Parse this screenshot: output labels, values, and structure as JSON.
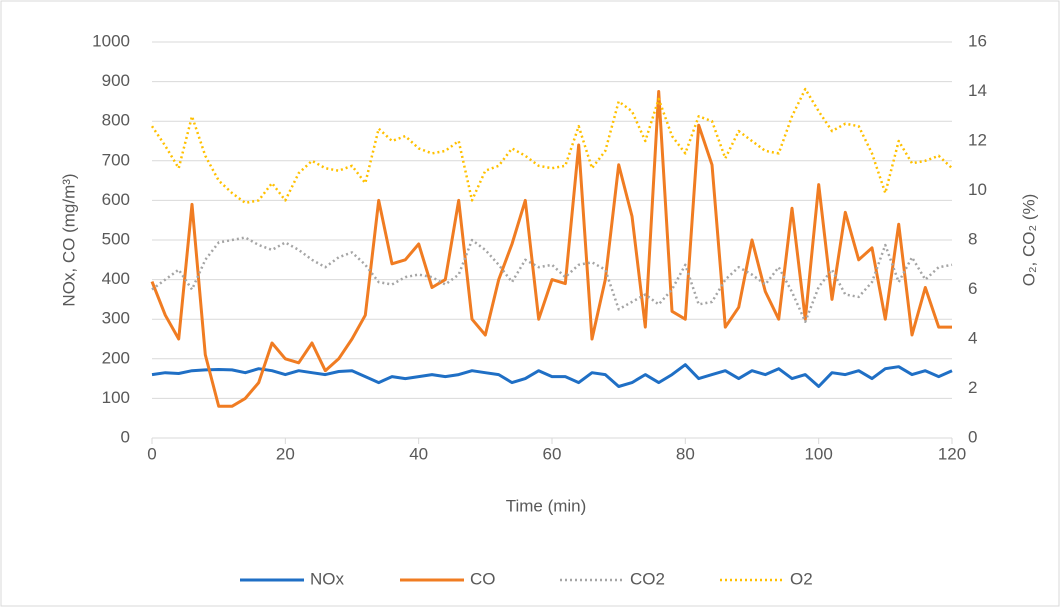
{
  "chart_data": {
    "type": "line",
    "xlabel": "Time (min)",
    "ylabel": "NOx, CO (mg/m³)",
    "y2label": "O₂, CO₂ (%)",
    "xlim": [
      0,
      120
    ],
    "xticks": [
      0,
      20,
      40,
      60,
      80,
      100,
      120
    ],
    "ylim": [
      0,
      1000
    ],
    "yticks": [
      0,
      100,
      200,
      300,
      400,
      500,
      600,
      700,
      800,
      900,
      1000
    ],
    "y2lim": [
      0,
      16
    ],
    "y2ticks": [
      0,
      2,
      4,
      6,
      8,
      10,
      12,
      14,
      16
    ],
    "grid": true,
    "legend": "bottom",
    "x": [
      0,
      2,
      4,
      6,
      8,
      10,
      12,
      14,
      16,
      18,
      20,
      22,
      24,
      26,
      28,
      30,
      32,
      34,
      36,
      38,
      40,
      42,
      44,
      46,
      48,
      50,
      52,
      54,
      56,
      58,
      60,
      62,
      64,
      66,
      68,
      70,
      72,
      74,
      76,
      78,
      80,
      82,
      84,
      86,
      88,
      90,
      92,
      94,
      96,
      98,
      100,
      102,
      104,
      106,
      108,
      110,
      112,
      114,
      116,
      118,
      120
    ],
    "series": [
      {
        "name": "NOx",
        "color": "#1f6fc5",
        "style": "solid",
        "values": [
          160,
          165,
          163,
          170,
          172,
          173,
          172,
          165,
          175,
          170,
          160,
          170,
          165,
          160,
          168,
          170,
          155,
          140,
          155,
          150,
          155,
          160,
          155,
          160,
          170,
          165,
          160,
          140,
          150,
          170,
          155,
          155,
          140,
          165,
          160,
          130,
          140,
          160,
          140,
          160,
          185,
          150,
          160,
          170,
          150,
          170,
          160,
          175,
          150,
          160,
          130,
          165,
          160,
          170,
          150,
          175,
          180,
          160,
          170,
          155,
          170
        ]
      },
      {
        "name": "CO",
        "color": "#f07c22",
        "style": "solid",
        "values": [
          395,
          310,
          250,
          590,
          210,
          80,
          80,
          100,
          140,
          240,
          200,
          190,
          240,
          170,
          200,
          250,
          310,
          600,
          440,
          450,
          490,
          380,
          400,
          600,
          300,
          260,
          400,
          490,
          600,
          300,
          400,
          390,
          740,
          250,
          400,
          690,
          560,
          280,
          875,
          320,
          300,
          790,
          690,
          280,
          330,
          500,
          370,
          300,
          580,
          300,
          640,
          350,
          570,
          450,
          480,
          300,
          540,
          260,
          380,
          280,
          280
        ]
      },
      {
        "name": "CO2",
        "color": "#a5a5a5",
        "style": "dotted",
        "axis": "y2",
        "values": [
          6.0,
          6.4,
          6.8,
          6.0,
          7.2,
          7.9,
          8.0,
          8.1,
          7.8,
          7.6,
          7.9,
          7.6,
          7.2,
          6.9,
          7.3,
          7.5,
          7.0,
          6.3,
          6.2,
          6.5,
          6.6,
          6.5,
          6.2,
          6.6,
          8.0,
          7.6,
          7.0,
          6.3,
          7.2,
          6.9,
          7.0,
          6.5,
          7.0,
          7.1,
          6.8,
          5.2,
          5.5,
          5.8,
          5.4,
          6.0,
          7.0,
          5.4,
          5.5,
          6.4,
          6.9,
          6.6,
          6.2,
          6.9,
          5.9,
          4.7,
          6.1,
          6.8,
          5.8,
          5.7,
          6.3,
          7.8,
          6.3,
          7.3,
          6.4,
          6.9,
          7.0
        ]
      },
      {
        "name": "O2",
        "color": "#ffc000",
        "style": "dotted",
        "axis": "y2",
        "values": [
          12.6,
          11.8,
          10.9,
          13.0,
          11.4,
          10.4,
          9.9,
          9.5,
          9.6,
          10.3,
          9.6,
          10.7,
          11.2,
          10.9,
          10.8,
          11.0,
          10.3,
          12.5,
          12.0,
          12.2,
          11.7,
          11.5,
          11.6,
          12.0,
          9.6,
          10.8,
          11.0,
          11.7,
          11.4,
          11.0,
          10.9,
          11.0,
          12.6,
          10.9,
          11.6,
          13.6,
          13.2,
          12.0,
          13.7,
          12.2,
          11.5,
          13.0,
          12.8,
          11.3,
          12.4,
          12.0,
          11.6,
          11.5,
          13.0,
          14.1,
          13.2,
          12.4,
          12.7,
          12.6,
          11.5,
          9.9,
          12.0,
          11.1,
          11.2,
          11.4,
          10.9
        ]
      }
    ]
  }
}
